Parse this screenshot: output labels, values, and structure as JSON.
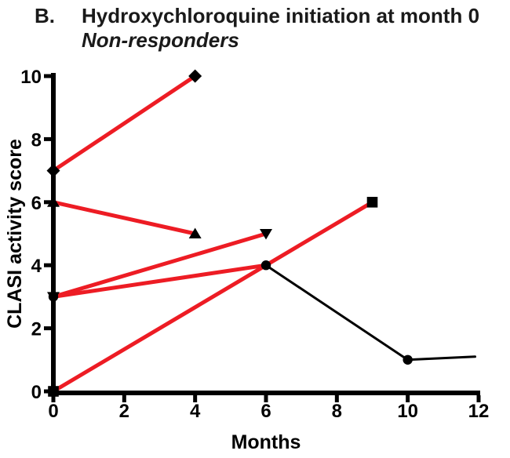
{
  "chart_data": {
    "type": "line",
    "panel_label": "B.",
    "title": "Hydroxychloroquine initiation at month 0",
    "subtitle": "Non-responders",
    "xlabel": "Months",
    "ylabel": "CLASI activity score",
    "xlim": [
      0,
      12
    ],
    "ylim": [
      0,
      10
    ],
    "x_ticks": [
      0,
      2,
      4,
      6,
      8,
      10,
      12
    ],
    "y_ticks": [
      0,
      2,
      4,
      6,
      8,
      10
    ],
    "grid": false,
    "legend": false,
    "colors": {
      "on_treatment_line": "#ed1c24",
      "off_treatment_line": "#000000",
      "marker": "#000000",
      "axis": "#000000"
    },
    "series": [
      {
        "name": "patient-diamond",
        "marker": "diamond",
        "points": [
          [
            0,
            7
          ],
          [
            4,
            10
          ]
        ],
        "segment_colors": [
          "#ed1c24"
        ],
        "segment_widths": [
          5
        ],
        "marker_visible": [
          true,
          true
        ]
      },
      {
        "name": "patient-triangle-up",
        "marker": "triangle-up",
        "points": [
          [
            0,
            6
          ],
          [
            4,
            5
          ]
        ],
        "segment_colors": [
          "#ed1c24"
        ],
        "segment_widths": [
          5
        ],
        "marker_visible": [
          true,
          true
        ]
      },
      {
        "name": "patient-triangle-down",
        "marker": "triangle-down",
        "points": [
          [
            0,
            3
          ],
          [
            6,
            5
          ]
        ],
        "segment_colors": [
          "#ed1c24"
        ],
        "segment_widths": [
          5
        ],
        "marker_visible": [
          true,
          true
        ]
      },
      {
        "name": "patient-square",
        "marker": "square",
        "points": [
          [
            0,
            0
          ],
          [
            9,
            6
          ]
        ],
        "segment_colors": [
          "#ed1c24"
        ],
        "segment_widths": [
          5
        ],
        "marker_visible": [
          true,
          true
        ]
      },
      {
        "name": "patient-circle",
        "marker": "circle",
        "points": [
          [
            0,
            3
          ],
          [
            6,
            4
          ],
          [
            10,
            1
          ],
          [
            11.9,
            1.1
          ]
        ],
        "segment_colors": [
          "#ed1c24",
          "#000000",
          "#000000"
        ],
        "segment_widths": [
          5,
          3,
          3
        ],
        "marker_visible": [
          true,
          true,
          true,
          false
        ]
      }
    ]
  }
}
